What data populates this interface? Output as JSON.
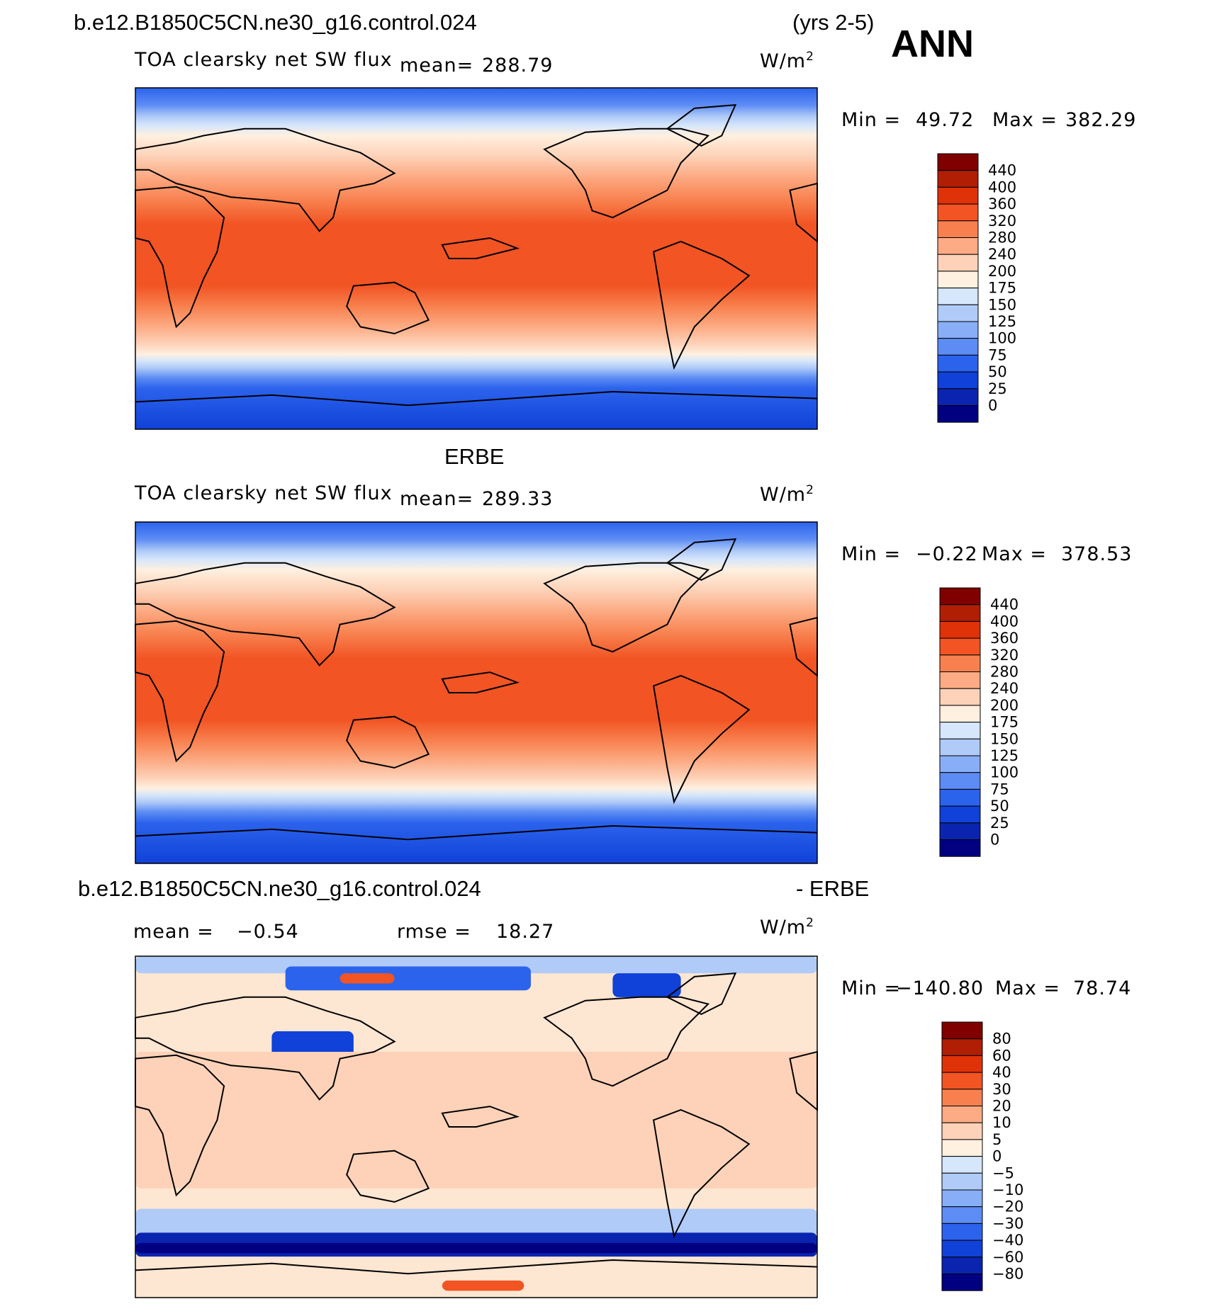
{
  "header": {
    "case_name": "b.e12.B1850C5CN.ne30_g16.control.024",
    "years": "(yrs 2-5)",
    "season": "ANN"
  },
  "colors": {
    "abs_scale": [
      "#000080",
      "#0a24b0",
      "#1041d8",
      "#2c63ec",
      "#5c8cf4",
      "#88aef8",
      "#b0cbf8",
      "#d6e6fb",
      "#fff0e0",
      "#fdd2b8",
      "#fcab84",
      "#f8804e",
      "#f25424",
      "#e03209",
      "#b01e04",
      "#800000"
    ],
    "diff_scale": [
      "#000080",
      "#0a24b0",
      "#1041d8",
      "#2c63ec",
      "#5c8cf4",
      "#88aef8",
      "#b0cbf8",
      "#d6e6fb",
      "#fff0e0",
      "#fdd2b8",
      "#fcab84",
      "#f8804e",
      "#f25424",
      "#e03209",
      "#b01e04",
      "#800000"
    ]
  },
  "chart_data": [
    {
      "type": "heatmap",
      "panel": "model",
      "variable": "TOA clearsky net SW flux",
      "mean_label": "mean=",
      "mean": "288.79",
      "units_base": "W/m",
      "units_exp": "2",
      "min_label": "Min =",
      "min": "49.72",
      "max_label": "Max =",
      "max": "382.29",
      "levels": [
        "0",
        "25",
        "50",
        "75",
        "100",
        "125",
        "150",
        "175",
        "200",
        "240",
        "280",
        "320",
        "360",
        "400",
        "440"
      ]
    },
    {
      "type": "heatmap",
      "panel": "obs",
      "title": "ERBE",
      "variable": "TOA clearsky net SW flux",
      "mean_label": "mean=",
      "mean": "289.33",
      "units_base": "W/m",
      "units_exp": "2",
      "min_label": "Min =",
      "min": "−0.22",
      "max_label": "Max =",
      "max": "378.53",
      "levels": [
        "0",
        "25",
        "50",
        "75",
        "100",
        "125",
        "150",
        "175",
        "200",
        "240",
        "280",
        "320",
        "360",
        "400",
        "440"
      ]
    },
    {
      "type": "heatmap",
      "panel": "difference",
      "title_left": "b.e12.B1850C5CN.ne30_g16.control.024",
      "title_right": "- ERBE",
      "mean_label": "mean =",
      "mean": "−0.54",
      "rmse_label": "rmse =",
      "rmse": "18.27",
      "units_base": "W/m",
      "units_exp": "2",
      "min_label": "Min =",
      "min": "−140.80",
      "max_label": "Max =",
      "max": "78.74",
      "levels": [
        "−80",
        "−60",
        "−40",
        "−30",
        "−20",
        "−10",
        "−5",
        "0",
        "5",
        "10",
        "20",
        "30",
        "40",
        "60",
        "80"
      ]
    }
  ]
}
